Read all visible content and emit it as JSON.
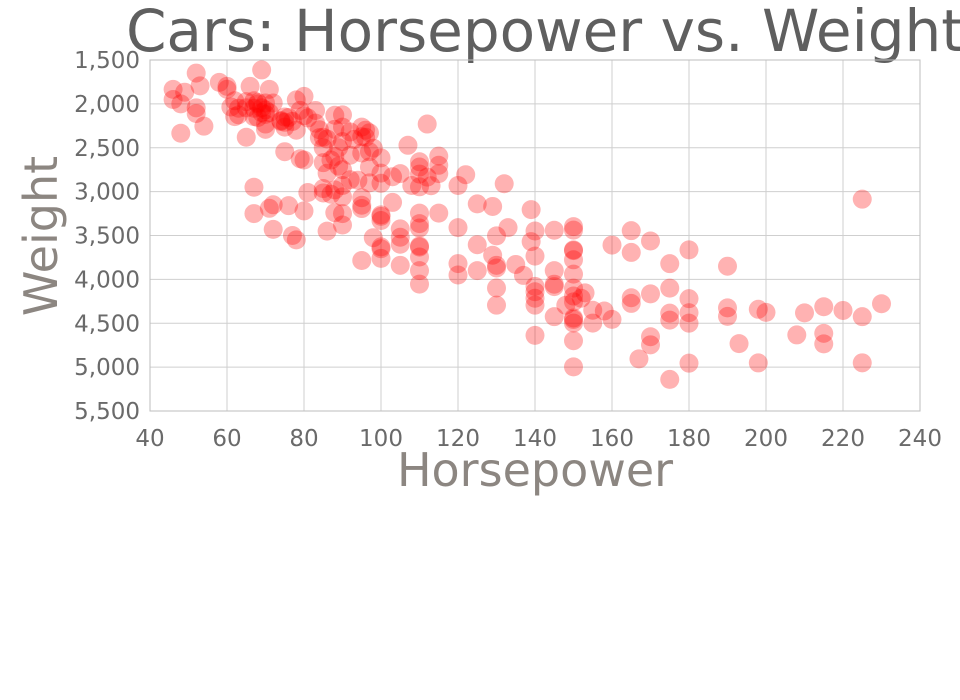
{
  "chart_data": {
    "type": "scatter",
    "title": "Cars: Horsepower vs. Weight",
    "xlabel": "Horsepower",
    "ylabel": "Weight",
    "xlim": [
      40,
      240
    ],
    "ylim": [
      1500,
      5500
    ],
    "y_reversed": true,
    "x_ticks": [
      40,
      60,
      80,
      100,
      120,
      140,
      160,
      180,
      200,
      220,
      240
    ],
    "x_tick_labels": [
      "40",
      "60",
      "80",
      "100",
      "120",
      "140",
      "160",
      "180",
      "200",
      "220",
      "240"
    ],
    "y_ticks": [
      1500,
      2000,
      2500,
      3000,
      3500,
      4000,
      4500,
      5000,
      5500
    ],
    "y_tick_labels": [
      "1,500",
      "2,000",
      "2,500",
      "3,000",
      "3,500",
      "4,000",
      "4,500",
      "5,000",
      "5,500"
    ],
    "grid": true,
    "legend": "none",
    "marker_color": "#ff0000",
    "marker_opacity": 0.3,
    "series": [
      {
        "points": [
          [
            46,
            1835
          ],
          [
            46,
            1950
          ],
          [
            48,
            2000
          ],
          [
            48,
            2335
          ],
          [
            49,
            1867
          ],
          [
            52,
            1649
          ],
          [
            52,
            2045
          ],
          [
            52,
            2110
          ],
          [
            53,
            1795
          ],
          [
            54,
            2254
          ],
          [
            58,
            1755
          ],
          [
            60,
            1800
          ],
          [
            60,
            1834
          ],
          [
            61,
            2035
          ],
          [
            62,
            1965
          ],
          [
            62,
            2145
          ],
          [
            63,
            2050
          ],
          [
            63,
            2125
          ],
          [
            65,
            1975
          ],
          [
            65,
            2045
          ],
          [
            65,
            2380
          ],
          [
            66,
            1800
          ],
          [
            67,
            1965
          ],
          [
            67,
            2050
          ],
          [
            67,
            2145
          ],
          [
            67,
            2950
          ],
          [
            67,
            3250
          ],
          [
            68,
            1985
          ],
          [
            68,
            2000
          ],
          [
            68,
            2155
          ],
          [
            69,
            1613
          ],
          [
            69,
            2045
          ],
          [
            69,
            2100
          ],
          [
            70,
            1990
          ],
          [
            70,
            2070
          ],
          [
            70,
            2120
          ],
          [
            70,
            2230
          ],
          [
            70,
            2290
          ],
          [
            71,
            1835
          ],
          [
            71,
            2100
          ],
          [
            71,
            3190
          ],
          [
            72,
            1990
          ],
          [
            72,
            3150
          ],
          [
            72,
            3430
          ],
          [
            74,
            2190
          ],
          [
            74,
            2200
          ],
          [
            75,
            2150
          ],
          [
            75,
            2210
          ],
          [
            75,
            2265
          ],
          [
            75,
            2545
          ],
          [
            76,
            2155
          ],
          [
            76,
            3160
          ],
          [
            77,
            2200
          ],
          [
            77,
            3500
          ],
          [
            78,
            1955
          ],
          [
            78,
            2300
          ],
          [
            78,
            3550
          ],
          [
            79,
            2074
          ],
          [
            79,
            2625
          ],
          [
            80,
            1915
          ],
          [
            80,
            2135
          ],
          [
            80,
            2640
          ],
          [
            80,
            3220
          ],
          [
            81,
            2160
          ],
          [
            81,
            3010
          ],
          [
            83,
            2075
          ],
          [
            83,
            2220
          ],
          [
            84,
            2295
          ],
          [
            84,
            2385
          ],
          [
            85,
            2380
          ],
          [
            85,
            2500
          ],
          [
            85,
            2670
          ],
          [
            85,
            2965
          ],
          [
            85,
            3015
          ],
          [
            86,
            2400
          ],
          [
            86,
            3450
          ],
          [
            86,
            2790
          ],
          [
            87,
            2640
          ],
          [
            87,
            3030
          ],
          [
            88,
            2130
          ],
          [
            88,
            2290
          ],
          [
            88,
            2600
          ],
          [
            88,
            2980
          ],
          [
            88,
            3240
          ],
          [
            89,
            2500
          ],
          [
            89,
            2710
          ],
          [
            90,
            2125
          ],
          [
            90,
            2265
          ],
          [
            90,
            2430
          ],
          [
            90,
            2750
          ],
          [
            90,
            2930
          ],
          [
            90,
            3060
          ],
          [
            90,
            3250
          ],
          [
            90,
            3380
          ],
          [
            92,
            2320
          ],
          [
            92,
            2585
          ],
          [
            92,
            2865
          ],
          [
            93,
            2405
          ],
          [
            94,
            2870
          ],
          [
            95,
            2265
          ],
          [
            95,
            2375
          ],
          [
            95,
            2560
          ],
          [
            95,
            3070
          ],
          [
            95,
            3155
          ],
          [
            95,
            3193
          ],
          [
            95,
            3785
          ],
          [
            96,
            2300
          ],
          [
            96,
            2380
          ],
          [
            97,
            2330
          ],
          [
            97,
            2545
          ],
          [
            97,
            2720
          ],
          [
            97,
            2900
          ],
          [
            98,
            2505
          ],
          [
            98,
            3525
          ],
          [
            100,
            2615
          ],
          [
            100,
            2789
          ],
          [
            100,
            2905
          ],
          [
            100,
            3265
          ],
          [
            100,
            3282
          ],
          [
            100,
            3329
          ],
          [
            100,
            3630
          ],
          [
            100,
            3651
          ],
          [
            100,
            3761
          ],
          [
            103,
            2830
          ],
          [
            103,
            3123
          ],
          [
            105,
            2795
          ],
          [
            105,
            3425
          ],
          [
            105,
            3520
          ],
          [
            105,
            3600
          ],
          [
            105,
            3840
          ],
          [
            107,
            2472
          ],
          [
            108,
            2930
          ],
          [
            110,
            2660
          ],
          [
            110,
            2720
          ],
          [
            110,
            2800
          ],
          [
            110,
            2945
          ],
          [
            110,
            3245
          ],
          [
            110,
            3365
          ],
          [
            110,
            3415
          ],
          [
            110,
            3620
          ],
          [
            110,
            3632
          ],
          [
            110,
            3745
          ],
          [
            110,
            3900
          ],
          [
            110,
            4054
          ],
          [
            112,
            2230
          ],
          [
            112,
            2835
          ],
          [
            113,
            2933
          ],
          [
            115,
            2595
          ],
          [
            115,
            2700
          ],
          [
            115,
            2795
          ],
          [
            115,
            3245
          ],
          [
            120,
            2930
          ],
          [
            120,
            3410
          ],
          [
            120,
            3820
          ],
          [
            120,
            3950
          ],
          [
            122,
            2807
          ],
          [
            125,
            3140
          ],
          [
            125,
            3605
          ],
          [
            125,
            3900
          ],
          [
            129,
            3169
          ],
          [
            129,
            3725
          ],
          [
            130,
            3504
          ],
          [
            130,
            3840
          ],
          [
            130,
            3870
          ],
          [
            130,
            4098
          ],
          [
            130,
            4294
          ],
          [
            132,
            2910
          ],
          [
            133,
            3410
          ],
          [
            135,
            3830
          ],
          [
            137,
            3955
          ],
          [
            139,
            3205
          ],
          [
            139,
            3570
          ],
          [
            140,
            3449
          ],
          [
            140,
            3735
          ],
          [
            140,
            4080
          ],
          [
            140,
            4141
          ],
          [
            140,
            4215
          ],
          [
            140,
            4294
          ],
          [
            140,
            4638
          ],
          [
            145,
            3440
          ],
          [
            145,
            3900
          ],
          [
            145,
            4055
          ],
          [
            145,
            4082
          ],
          [
            145,
            4425
          ],
          [
            148,
            4295
          ],
          [
            150,
            3399
          ],
          [
            150,
            3439
          ],
          [
            150,
            3664
          ],
          [
            150,
            3672
          ],
          [
            150,
            3777
          ],
          [
            150,
            3940
          ],
          [
            150,
            4100
          ],
          [
            150,
            4190
          ],
          [
            150,
            4257
          ],
          [
            150,
            4440
          ],
          [
            150,
            4457
          ],
          [
            150,
            4498
          ],
          [
            150,
            4699
          ],
          [
            150,
            4997
          ],
          [
            152,
            4215
          ],
          [
            153,
            4154
          ],
          [
            155,
            4352
          ],
          [
            155,
            4498
          ],
          [
            158,
            4360
          ],
          [
            160,
            3609
          ],
          [
            160,
            4456
          ],
          [
            165,
            3445
          ],
          [
            165,
            3693
          ],
          [
            165,
            4209
          ],
          [
            165,
            4274
          ],
          [
            167,
            4906
          ],
          [
            170,
            3563
          ],
          [
            170,
            4165
          ],
          [
            170,
            4654
          ],
          [
            170,
            4746
          ],
          [
            175,
            3821
          ],
          [
            175,
            4100
          ],
          [
            175,
            4385
          ],
          [
            175,
            4464
          ],
          [
            175,
            5140
          ],
          [
            180,
            3664
          ],
          [
            180,
            4220
          ],
          [
            180,
            4380
          ],
          [
            180,
            4499
          ],
          [
            180,
            4955
          ],
          [
            190,
            3850
          ],
          [
            190,
            4325
          ],
          [
            190,
            4422
          ],
          [
            193,
            4732
          ],
          [
            198,
            4341
          ],
          [
            198,
            4952
          ],
          [
            200,
            4376
          ],
          [
            208,
            4633
          ],
          [
            210,
            4382
          ],
          [
            215,
            4312
          ],
          [
            215,
            4615
          ],
          [
            215,
            4735
          ],
          [
            220,
            4354
          ],
          [
            225,
            3086
          ],
          [
            225,
            4425
          ],
          [
            225,
            4951
          ],
          [
            230,
            4278
          ]
        ]
      }
    ]
  }
}
